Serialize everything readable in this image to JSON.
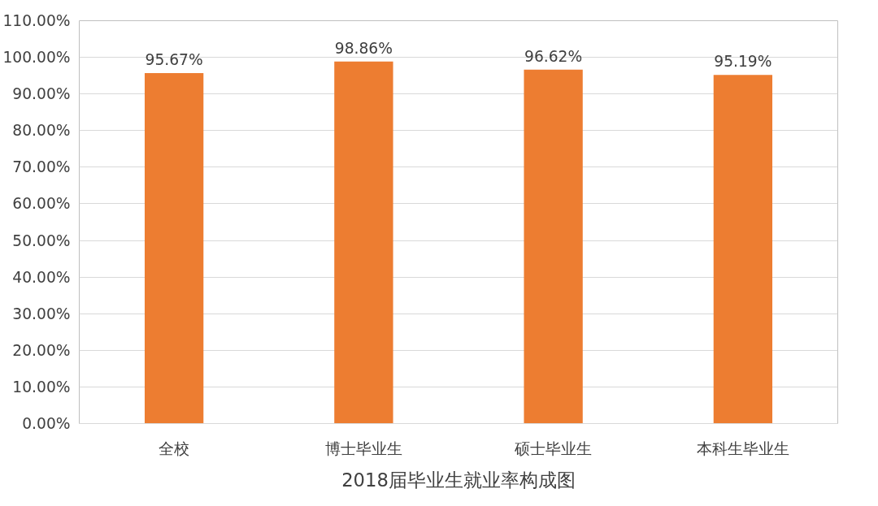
{
  "chart_data": {
    "type": "bar",
    "title": "2018届毕业生就业率构成图",
    "categories": [
      "全校",
      "博士毕业生",
      "硕士毕业生",
      "本科生毕业生"
    ],
    "values": [
      95.67,
      98.86,
      96.62,
      95.19
    ],
    "value_labels": [
      "95.67%",
      "98.86%",
      "96.62%",
      "95.19%"
    ],
    "color": "#ed7d31",
    "ylim": [
      0,
      110
    ],
    "yticks": [
      {
        "value": 0,
        "label": "0.00%"
      },
      {
        "value": 10,
        "label": "10.00%"
      },
      {
        "value": 20,
        "label": "20.00%"
      },
      {
        "value": 30,
        "label": "30.00%"
      },
      {
        "value": 40,
        "label": "40.00%"
      },
      {
        "value": 50,
        "label": "50.00%"
      },
      {
        "value": 60,
        "label": "60.00%"
      },
      {
        "value": 70,
        "label": "70.00%"
      },
      {
        "value": 80,
        "label": "80.00%"
      },
      {
        "value": 90,
        "label": "90.00%"
      },
      {
        "value": 100,
        "label": "100.00%"
      },
      {
        "value": 110,
        "label": "110.00%"
      }
    ],
    "grid": "y"
  }
}
